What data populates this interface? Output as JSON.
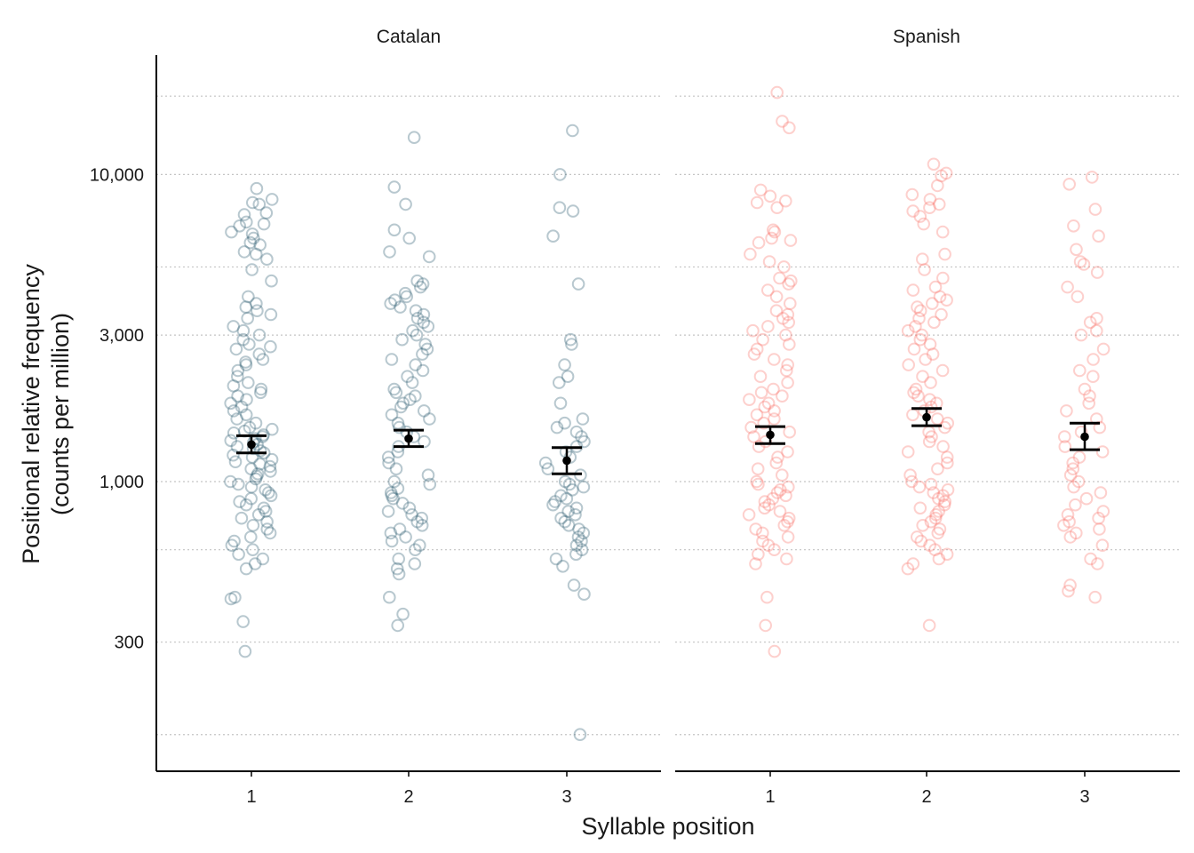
{
  "chart_data": {
    "type": "scatter",
    "subtype": "faceted jittered strip plot with mean and error bars",
    "title": "",
    "xlabel": "Syllable position",
    "ylabel_line1": "Positional relative frequency",
    "ylabel_line2": "(counts per million)",
    "y_scale": "log10",
    "ylim": [
      118,
      21700
    ],
    "y_ticks": [
      300,
      1000,
      3000,
      10000
    ],
    "y_tick_labels": [
      "300",
      "1,000",
      "3,000",
      "10,000"
    ],
    "y_minor_gridlines": [
      150,
      600,
      5000,
      18000
    ],
    "grid": "horizontal dotted",
    "legend": "none",
    "categories": [
      "1",
      "2",
      "3"
    ],
    "point_counts_note": "individual points approximated",
    "panels": [
      {
        "name": "Catalan",
        "color": "#2f5f73",
        "groups": [
          {
            "position": "1",
            "mean": 1320,
            "ci_low": 1240,
            "ci_high": 1410,
            "points": [
              9000,
              8300,
              8100,
              8000,
              7500,
              7400,
              7000,
              6900,
              6800,
              6500,
              6400,
              6200,
              6000,
              5900,
              5600,
              5500,
              5300,
              4900,
              4500,
              4000,
              3800,
              3700,
              3600,
              3500,
              3400,
              3200,
              3100,
              3000,
              2900,
              2800,
              2750,
              2700,
              2600,
              2500,
              2450,
              2400,
              2300,
              2200,
              2100,
              2050,
              2000,
              1950,
              1900,
              1850,
              1800,
              1750,
              1700,
              1650,
              1600,
              1550,
              1500,
              1480,
              1460,
              1440,
              1420,
              1400,
              1380,
              1360,
              1340,
              1320,
              1300,
              1280,
              1260,
              1240,
              1220,
              1200,
              1180,
              1160,
              1140,
              1120,
              1100,
              1080,
              1060,
              1040,
              1020,
              1000,
              980,
              960,
              940,
              920,
              900,
              880,
              860,
              840,
              820,
              800,
              780,
              760,
              740,
              720,
              700,
              680,
              660,
              640,
              620,
              600,
              580,
              560,
              540,
              520,
              420,
              415,
              350,
              280
            ]
          },
          {
            "position": "2",
            "mean": 1380,
            "ci_low": 1300,
            "ci_high": 1470,
            "points": [
              13200,
              9100,
              8000,
              6600,
              6200,
              5600,
              5400,
              4500,
              4400,
              4300,
              4100,
              4000,
              3900,
              3800,
              3700,
              3600,
              3500,
              3400,
              3300,
              3200,
              3100,
              3000,
              2900,
              2800,
              2700,
              2600,
              2500,
              2400,
              2300,
              2200,
              2100,
              2000,
              1950,
              1900,
              1850,
              1800,
              1750,
              1700,
              1650,
              1600,
              1550,
              1500,
              1450,
              1400,
              1350,
              1300,
              1250,
              1200,
              1150,
              1100,
              1050,
              1000,
              980,
              950,
              920,
              900,
              880,
              850,
              820,
              800,
              780,
              760,
              740,
              720,
              700,
              680,
              660,
              640,
              620,
              600,
              560,
              540,
              520,
              500,
              420,
              370,
              340
            ]
          },
          {
            "position": "3",
            "mean": 1170,
            "ci_low": 1060,
            "ci_high": 1290,
            "points": [
              13900,
              10000,
              7800,
              7600,
              6300,
              4400,
              2900,
              2800,
              2400,
              2200,
              2100,
              1800,
              1600,
              1550,
              1500,
              1450,
              1400,
              1350,
              1300,
              1250,
              1200,
              1150,
              1100,
              1050,
              1000,
              980,
              960,
              940,
              900,
              880,
              860,
              840,
              820,
              800,
              780,
              760,
              740,
              720,
              700,
              680,
              660,
              640,
              620,
              600,
              580,
              560,
              530,
              460,
              430,
              150
            ]
          }
        ]
      },
      {
        "name": "Spanish",
        "color": "#f8766d",
        "groups": [
          {
            "position": "1",
            "mean": 1420,
            "ci_low": 1330,
            "ci_high": 1510,
            "points": [
              18500,
              14900,
              14200,
              8900,
              8500,
              8200,
              8100,
              7800,
              6600,
              6500,
              6200,
              6100,
              6000,
              5500,
              5200,
              5000,
              4600,
              4500,
              4400,
              4200,
              4000,
              3800,
              3600,
              3500,
              3400,
              3300,
              3200,
              3100,
              3000,
              2900,
              2800,
              2700,
              2600,
              2500,
              2400,
              2300,
              2200,
              2100,
              2000,
              1950,
              1900,
              1850,
              1800,
              1750,
              1700,
              1650,
              1600,
              1550,
              1500,
              1450,
              1400,
              1350,
              1300,
              1250,
              1200,
              1150,
              1100,
              1050,
              1000,
              980,
              960,
              940,
              920,
              900,
              880,
              860,
              840,
              820,
              800,
              780,
              760,
              740,
              720,
              700,
              680,
              660,
              640,
              620,
              600,
              580,
              560,
              540,
              420,
              340,
              280
            ]
          },
          {
            "position": "2",
            "mean": 1620,
            "ci_low": 1520,
            "ci_high": 1730,
            "points": [
              10800,
              10100,
              9900,
              9200,
              8600,
              8300,
              8000,
              7800,
              7600,
              7300,
              6900,
              6500,
              5500,
              5300,
              4900,
              4600,
              4300,
              4200,
              4000,
              3900,
              3800,
              3700,
              3600,
              3500,
              3400,
              3300,
              3200,
              3100,
              3000,
              2900,
              2800,
              2700,
              2600,
              2500,
              2400,
              2300,
              2200,
              2100,
              2000,
              1950,
              1900,
              1850,
              1800,
              1750,
              1700,
              1650,
              1600,
              1550,
              1500,
              1450,
              1400,
              1350,
              1300,
              1250,
              1200,
              1150,
              1100,
              1050,
              1000,
              980,
              960,
              940,
              920,
              900,
              880,
              860,
              840,
              820,
              800,
              780,
              760,
              740,
              720,
              700,
              680,
              660,
              640,
              620,
              600,
              580,
              560,
              540,
              520,
              340
            ]
          },
          {
            "position": "3",
            "mean": 1400,
            "ci_low": 1270,
            "ci_high": 1550,
            "points": [
              9800,
              9300,
              7700,
              6800,
              6300,
              5700,
              5200,
              5100,
              4800,
              4300,
              4000,
              3400,
              3300,
              3100,
              3000,
              2700,
              2500,
              2300,
              2200,
              2000,
              1900,
              1800,
              1700,
              1600,
              1500,
              1450,
              1400,
              1300,
              1250,
              1200,
              1150,
              1100,
              1050,
              1000,
              960,
              920,
              880,
              840,
              800,
              780,
              760,
              740,
              720,
              700,
              680,
              660,
              620,
              560,
              540,
              460,
              440,
              420
            ]
          }
        ]
      }
    ]
  }
}
